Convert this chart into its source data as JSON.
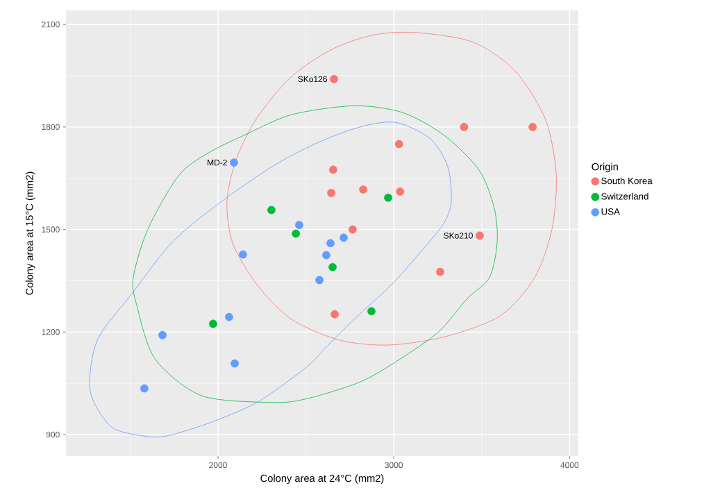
{
  "chart_data": {
    "type": "scatter",
    "xlabel": "Colony area at 24°C (mm2)",
    "ylabel": "Colony area at 15°C (mm2)",
    "legend_title": "Origin",
    "legend": "right",
    "grid": true,
    "marker": "circle",
    "xlim": [
      1135,
      4050
    ],
    "ylim": [
      837,
      2141
    ],
    "xticks": [
      2000,
      3000,
      4000
    ],
    "yticks": [
      900,
      1200,
      1500,
      1800,
      2100
    ],
    "series": [
      {
        "name": "South Korea",
        "color": "#F8766D",
        "x": [
          2660,
          3400,
          3790,
          3030,
          2655,
          2644,
          2826,
          3036,
          2766,
          3489,
          3264,
          2664
        ],
        "values": [
          1940,
          1800,
          1800,
          1750,
          1675,
          1607,
          1617,
          1611,
          1500,
          1482,
          1376,
          1252
        ]
      },
      {
        "name": "Switzerland",
        "color": "#00BA38",
        "x": [
          2304,
          2968,
          2443,
          2652,
          2873,
          1972
        ],
        "values": [
          1557,
          1593,
          1488,
          1390,
          1261,
          1224
        ]
      },
      {
        "name": "USA",
        "color": "#619CFF",
        "x": [
          2091,
          2462,
          2715,
          2640,
          2616,
          2577,
          2142,
          2063,
          1684,
          2095,
          1581
        ],
        "values": [
          1696,
          1513,
          1476,
          1460,
          1425,
          1352,
          1427,
          1244,
          1191,
          1108,
          1035
        ]
      }
    ],
    "annotations": [
      {
        "text": "SKo126",
        "x": 2660,
        "y": 1940
      },
      {
        "text": "MD-2",
        "x": 2091,
        "y": 1696
      },
      {
        "text": "SKo210",
        "x": 3489,
        "y": 1482
      }
    ]
  }
}
